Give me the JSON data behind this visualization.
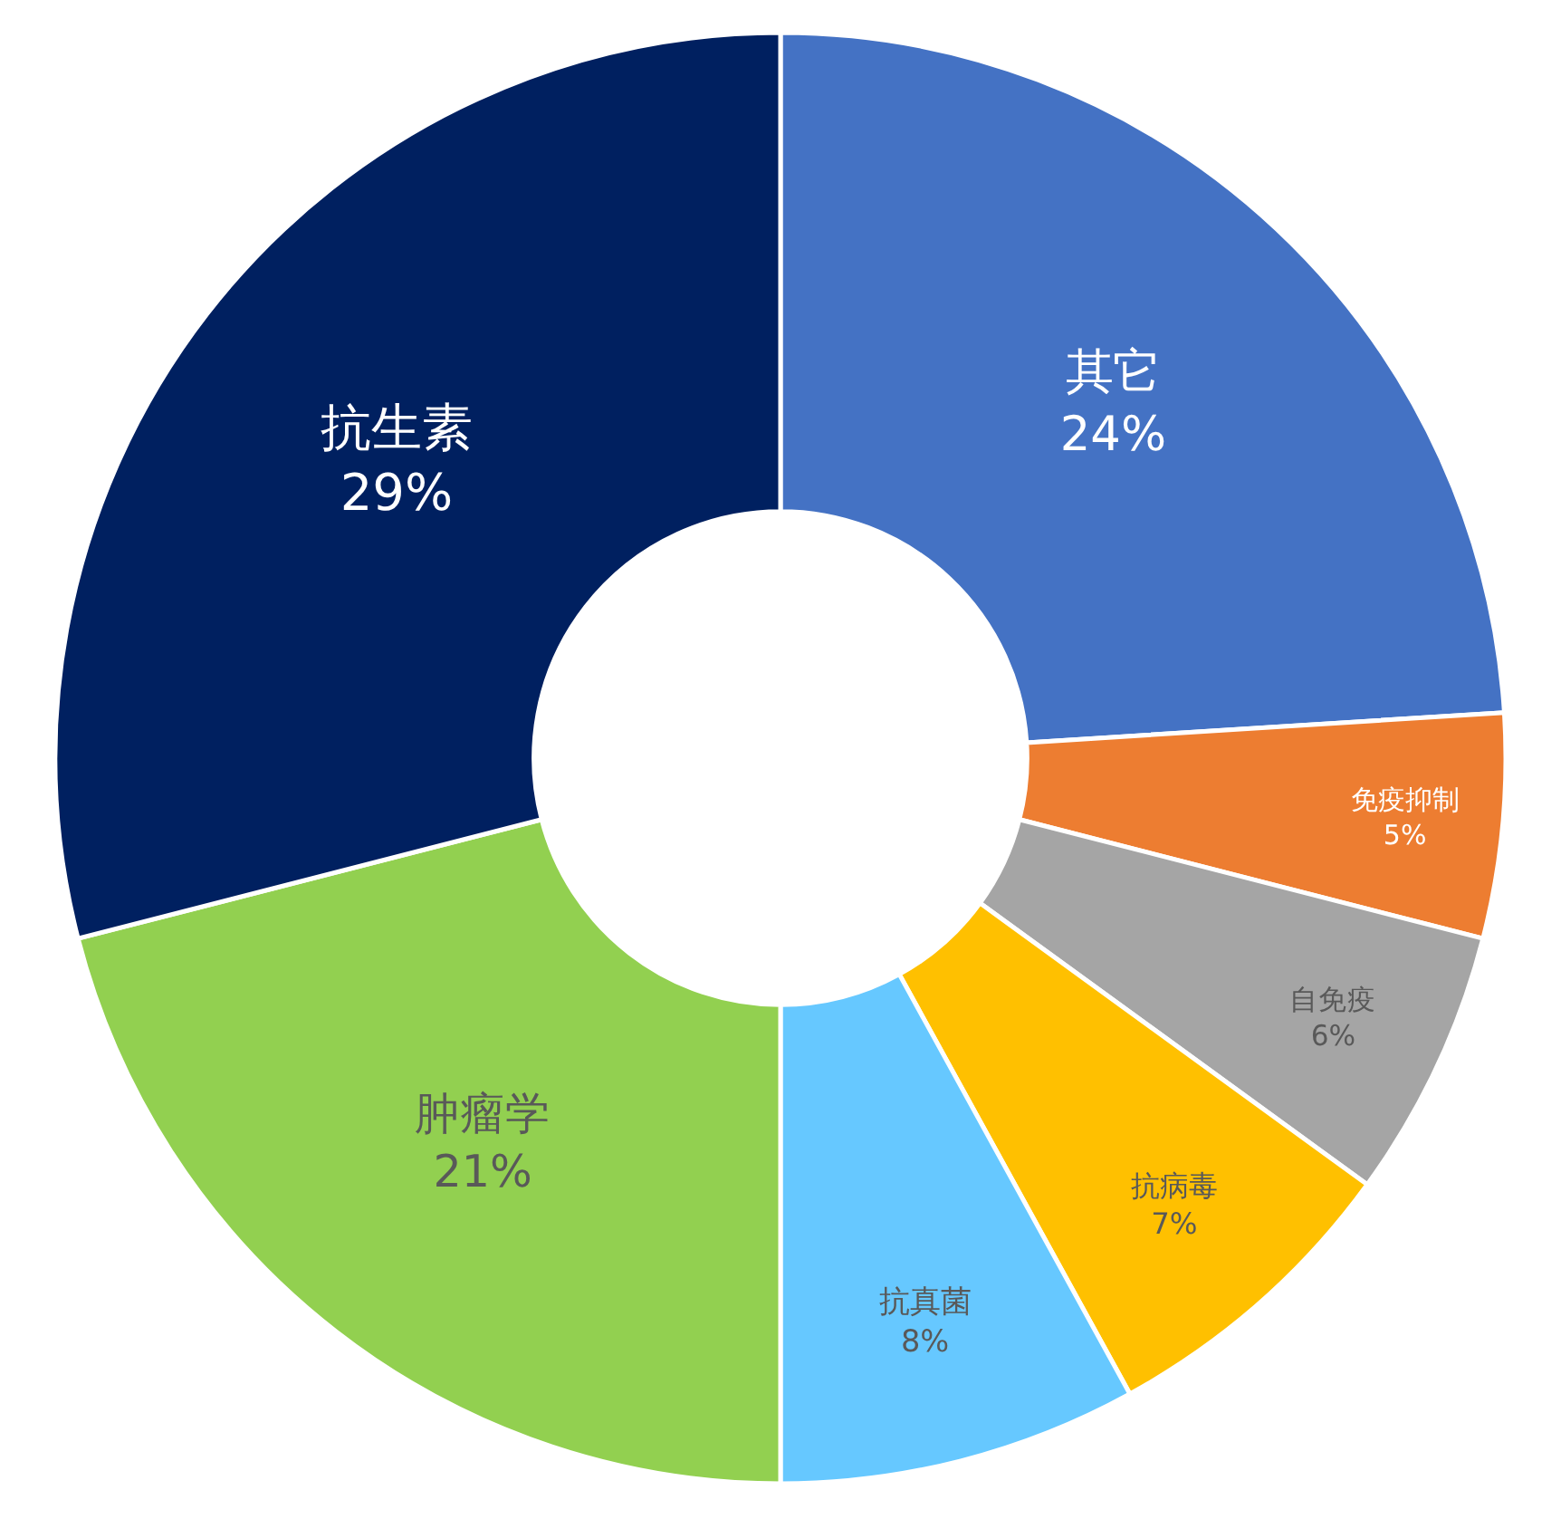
{
  "chart_data": {
    "type": "donut",
    "categories": [
      "其它",
      "免疫抑制",
      "自免疫",
      "抗病毒",
      "抗真菌",
      "肿瘤学",
      "抗生素"
    ],
    "values": [
      24,
      5,
      6,
      7,
      8,
      21,
      29
    ],
    "value_labels": [
      "24%",
      "5%",
      "6%",
      "7%",
      "8%",
      "21%",
      "29%"
    ],
    "colors": [
      "#4472c4",
      "#ed7d31",
      "#a5a5a5",
      "#ffc000",
      "#66c8ff",
      "#92d050",
      "#002060"
    ],
    "legend": false
  }
}
